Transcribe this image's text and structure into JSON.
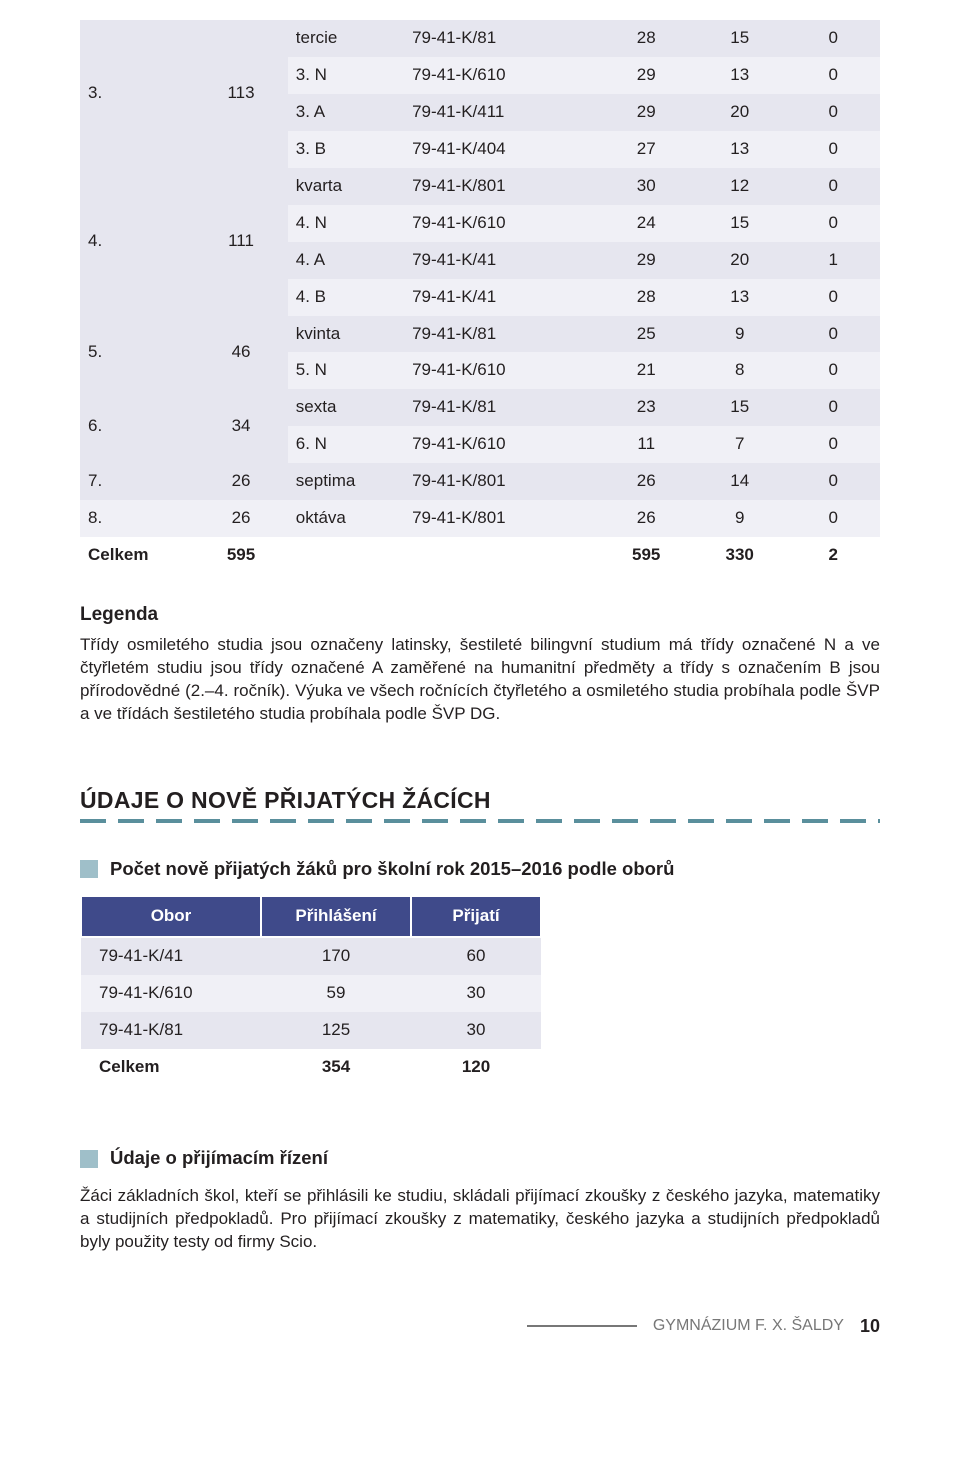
{
  "main_table": {
    "groups": [
      {
        "label_a": "3.",
        "label_b": "113",
        "rows": [
          {
            "a": "tercie",
            "b": "79-41-K/81",
            "c": "28",
            "d": "15",
            "e": "0",
            "band": "a"
          },
          {
            "a": "3. N",
            "b": "79-41-K/610",
            "c": "29",
            "d": "13",
            "e": "0",
            "band": "b"
          },
          {
            "a": "3. A",
            "b": "79-41-K/411",
            "c": "29",
            "d": "20",
            "e": "0",
            "band": "a"
          },
          {
            "a": "3. B",
            "b": "79-41-K/404",
            "c": "27",
            "d": "13",
            "e": "0",
            "band": "b"
          }
        ]
      },
      {
        "label_a": "4.",
        "label_b": "111",
        "rows": [
          {
            "a": "kvarta",
            "b": "79-41-K/801",
            "c": "30",
            "d": "12",
            "e": "0",
            "band": "a"
          },
          {
            "a": "4. N",
            "b": "79-41-K/610",
            "c": "24",
            "d": "15",
            "e": "0",
            "band": "b"
          },
          {
            "a": "4. A",
            "b": "79-41-K/41",
            "c": "29",
            "d": "20",
            "e": "1",
            "band": "a"
          },
          {
            "a": "4. B",
            "b": "79-41-K/41",
            "c": "28",
            "d": "13",
            "e": "0",
            "band": "b"
          }
        ]
      },
      {
        "label_a": "5.",
        "label_b": "46",
        "rows": [
          {
            "a": "kvinta",
            "b": "79-41-K/81",
            "c": "25",
            "d": "9",
            "e": "0",
            "band": "a"
          },
          {
            "a": "5. N",
            "b": "79-41-K/610",
            "c": "21",
            "d": "8",
            "e": "0",
            "band": "b"
          }
        ]
      },
      {
        "label_a": "6.",
        "label_b": "34",
        "rows": [
          {
            "a": "sexta",
            "b": "79-41-K/81",
            "c": "23",
            "d": "15",
            "e": "0",
            "band": "a"
          },
          {
            "a": "6. N",
            "b": "79-41-K/610",
            "c": "11",
            "d": "7",
            "e": "0",
            "band": "b"
          }
        ]
      },
      {
        "label_a": "7.",
        "label_b": "26",
        "rows": [
          {
            "a": "septima",
            "b": "79-41-K/801",
            "c": "26",
            "d": "14",
            "e": "0",
            "band": "a"
          }
        ]
      },
      {
        "label_a": "8.",
        "label_b": "26",
        "rows": [
          {
            "a": "oktáva",
            "b": "79-41-K/801",
            "c": "26",
            "d": "9",
            "e": "0",
            "band": "b"
          }
        ]
      }
    ],
    "total": {
      "label": "Celkem",
      "b": "595",
      "c": "595",
      "d": "330",
      "e": "2"
    }
  },
  "legenda": {
    "heading": "Legenda",
    "text": "Třídy osmiletého studia jsou označeny latinsky, šestileté bilingvní studium má třídy označené N a ve čtyřletém studiu jsou třídy označené A zaměřené na humanitní předměty a třídy s označením B jsou přírodovědné (2.–4. ročník). Výuka ve všech ročnících čtyřletého a osmiletého studia probíhala podle ŠVP a ve třídách šestiletého studia probíhala podle ŠVP DG."
  },
  "section2": {
    "title": "ÚDAJE O NOVĚ PŘIJATÝCH ŽÁCÍCH",
    "sub1": "Počet nově přijatých žáků pro školní rok 2015–2016 podle oborů",
    "table": {
      "headers": [
        "Obor",
        "Přihlášení",
        "Přijatí"
      ],
      "rows": [
        {
          "c0": "79-41-K/41",
          "c1": "170",
          "c2": "60",
          "cls": "odd"
        },
        {
          "c0": "79-41-K/610",
          "c1": "59",
          "c2": "30",
          "cls": "even"
        },
        {
          "c0": "79-41-K/81",
          "c1": "125",
          "c2": "30",
          "cls": "odd"
        }
      ],
      "total": {
        "c0": "Celkem",
        "c1": "354",
        "c2": "120"
      }
    },
    "sub2": "Údaje o přijímacím řízení",
    "para": "Žáci základních škol, kteří se přihlásili ke studiu, skládali přijímací zkoušky z českého jazyka, matematiky a studijních předpokladů. Pro přijímací zkoušky z matematiky, českého jazyka a studijních předpokladů byly použity testy od firmy Scio."
  },
  "footer": {
    "text": "GYMNÁZIUM F. X. ŠALDY",
    "page": "10"
  }
}
